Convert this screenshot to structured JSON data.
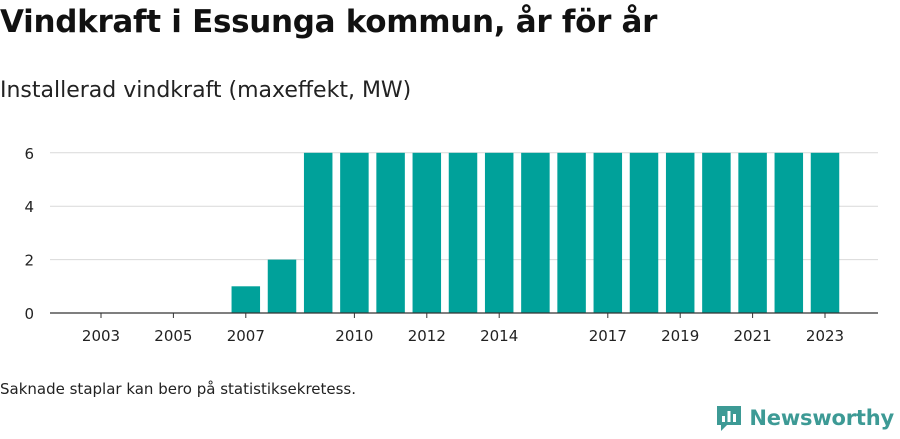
{
  "header": {
    "title": "Vindkraft i Essunga kommun, år för år",
    "subtitle": "Installerad vindkraft (maxeffekt, MW)"
  },
  "footer": {
    "note": "Saknade staplar kan bero på statistiksekretess.",
    "brand": "Newsworthy"
  },
  "colors": {
    "bar": "#00a19a",
    "grid": "#d9d9d9",
    "axis": "#333333",
    "brand": "#3d9a95"
  },
  "icons": {
    "brand": "newsworthy-logo-icon"
  },
  "chart_data": {
    "type": "bar",
    "title": "Vindkraft i Essunga kommun, år för år",
    "ylabel": "Installerad vindkraft (maxeffekt, MW)",
    "xlabel": "",
    "categories": [
      2003,
      2004,
      2005,
      2006,
      2007,
      2008,
      2009,
      2010,
      2011,
      2012,
      2013,
      2014,
      2015,
      2016,
      2017,
      2018,
      2019,
      2020,
      2021,
      2022,
      2023
    ],
    "values": [
      0,
      0,
      0,
      0,
      1,
      2,
      6,
      6,
      6,
      6,
      6,
      6,
      6,
      6,
      6,
      6,
      6,
      6,
      6,
      6,
      6
    ],
    "x_tick_labels": [
      "2003",
      "2005",
      "2007",
      "2010",
      "2012",
      "2014",
      "2017",
      "2019",
      "2021",
      "2023"
    ],
    "y_ticks": [
      0,
      2,
      4,
      6
    ],
    "ylim": [
      0,
      6.5
    ],
    "grid": true,
    "legend": "none"
  }
}
